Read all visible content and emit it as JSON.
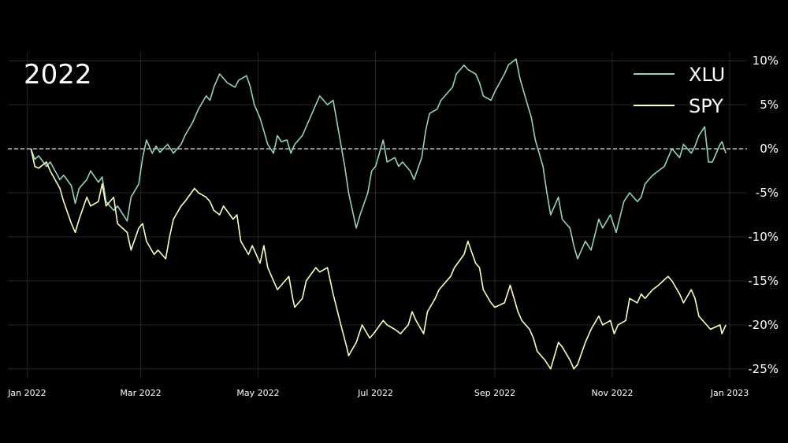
{
  "chart_data": {
    "type": "line",
    "title": "2022",
    "xlabel": "",
    "ylabel": "",
    "x_ticks": [
      "Jan 2022",
      "Mar 2022",
      "May 2022",
      "Jul 2022",
      "Sep 2022",
      "Nov 2022",
      "Jan 2023"
    ],
    "y_ticks": [
      "10%",
      "5%",
      "0%",
      "-5%",
      "-10%",
      "-15%",
      "-20%",
      "-25%"
    ],
    "ylim": [
      -26,
      11
    ],
    "xlim": [
      "2021-12-22",
      "2023-01-10"
    ],
    "grid": true,
    "reference_line": {
      "y": 0,
      "style": "dashed"
    },
    "legend_position": "top-right",
    "series": [
      {
        "name": "XLU",
        "color": "#8fd3c3",
        "points": [
          [
            "2022-01-03",
            0.0
          ],
          [
            "2022-01-05",
            -1.2
          ],
          [
            "2022-01-07",
            -0.8
          ],
          [
            "2022-01-11",
            -2.0
          ],
          [
            "2022-01-13",
            -1.5
          ],
          [
            "2022-01-18",
            -3.5
          ],
          [
            "2022-01-20",
            -3.0
          ],
          [
            "2022-01-24",
            -4.2
          ],
          [
            "2022-01-26",
            -6.2
          ],
          [
            "2022-01-28",
            -4.5
          ],
          [
            "2022-02-01",
            -3.5
          ],
          [
            "2022-02-03",
            -2.5
          ],
          [
            "2022-02-07",
            -3.8
          ],
          [
            "2022-02-09",
            -3.2
          ],
          [
            "2022-02-11",
            -6.0
          ],
          [
            "2022-02-15",
            -7.0
          ],
          [
            "2022-02-17",
            -6.5
          ],
          [
            "2022-02-22",
            -8.2
          ],
          [
            "2022-02-24",
            -5.5
          ],
          [
            "2022-02-28",
            -4.0
          ],
          [
            "2022-03-02",
            -1.0
          ],
          [
            "2022-03-04",
            1.0
          ],
          [
            "2022-03-07",
            -0.5
          ],
          [
            "2022-03-09",
            0.3
          ],
          [
            "2022-03-11",
            -0.4
          ],
          [
            "2022-03-15",
            0.5
          ],
          [
            "2022-03-18",
            -0.5
          ],
          [
            "2022-03-22",
            0.5
          ],
          [
            "2022-03-24",
            1.5
          ],
          [
            "2022-03-28",
            3.0
          ],
          [
            "2022-03-31",
            4.5
          ],
          [
            "2022-04-04",
            6.0
          ],
          [
            "2022-04-06",
            5.5
          ],
          [
            "2022-04-08",
            7.0
          ],
          [
            "2022-04-11",
            8.5
          ],
          [
            "2022-04-13",
            8.0
          ],
          [
            "2022-04-15",
            7.5
          ],
          [
            "2022-04-19",
            7.0
          ],
          [
            "2022-04-21",
            7.8
          ],
          [
            "2022-04-25",
            8.3
          ],
          [
            "2022-04-27",
            7.0
          ],
          [
            "2022-04-29",
            5.0
          ],
          [
            "2022-05-02",
            3.5
          ],
          [
            "2022-05-04",
            2.0
          ],
          [
            "2022-05-06",
            0.5
          ],
          [
            "2022-05-09",
            -0.5
          ],
          [
            "2022-05-11",
            1.5
          ],
          [
            "2022-05-13",
            0.8
          ],
          [
            "2022-05-16",
            1.0
          ],
          [
            "2022-05-18",
            -0.5
          ],
          [
            "2022-05-20",
            0.5
          ],
          [
            "2022-05-24",
            1.5
          ],
          [
            "2022-05-26",
            2.5
          ],
          [
            "2022-05-31",
            5.0
          ],
          [
            "2022-06-02",
            6.0
          ],
          [
            "2022-06-06",
            5.0
          ],
          [
            "2022-06-09",
            5.5
          ],
          [
            "2022-06-13",
            0.5
          ],
          [
            "2022-06-15",
            -2.0
          ],
          [
            "2022-06-17",
            -5.0
          ],
          [
            "2022-06-21",
            -9.0
          ],
          [
            "2022-06-23",
            -7.5
          ],
          [
            "2022-06-27",
            -5.0
          ],
          [
            "2022-06-29",
            -2.5
          ],
          [
            "2022-07-01",
            -2.0
          ],
          [
            "2022-07-05",
            1.0
          ],
          [
            "2022-07-07",
            -1.5
          ],
          [
            "2022-07-11",
            -1.0
          ],
          [
            "2022-07-13",
            -2.0
          ],
          [
            "2022-07-15",
            -1.5
          ],
          [
            "2022-07-19",
            -2.5
          ],
          [
            "2022-07-21",
            -3.5
          ],
          [
            "2022-07-25",
            -1.0
          ],
          [
            "2022-07-27",
            2.0
          ],
          [
            "2022-07-29",
            4.0
          ],
          [
            "2022-08-02",
            4.5
          ],
          [
            "2022-08-04",
            5.5
          ],
          [
            "2022-08-08",
            6.5
          ],
          [
            "2022-08-10",
            7.0
          ],
          [
            "2022-08-12",
            8.5
          ],
          [
            "2022-08-16",
            9.5
          ],
          [
            "2022-08-18",
            9.0
          ],
          [
            "2022-08-22",
            8.5
          ],
          [
            "2022-08-24",
            7.5
          ],
          [
            "2022-08-26",
            6.0
          ],
          [
            "2022-08-30",
            5.5
          ],
          [
            "2022-09-01",
            6.5
          ],
          [
            "2022-09-06",
            8.5
          ],
          [
            "2022-09-08",
            9.5
          ],
          [
            "2022-09-12",
            10.2
          ],
          [
            "2022-09-14",
            8.0
          ],
          [
            "2022-09-16",
            6.5
          ],
          [
            "2022-09-20",
            3.5
          ],
          [
            "2022-09-22",
            1.0
          ],
          [
            "2022-09-26",
            -2.0
          ],
          [
            "2022-09-28",
            -5.0
          ],
          [
            "2022-09-30",
            -7.5
          ],
          [
            "2022-10-04",
            -5.5
          ],
          [
            "2022-10-06",
            -8.0
          ],
          [
            "2022-10-10",
            -9.0
          ],
          [
            "2022-10-12",
            -11.0
          ],
          [
            "2022-10-14",
            -12.5
          ],
          [
            "2022-10-18",
            -10.5
          ],
          [
            "2022-10-21",
            -11.5
          ],
          [
            "2022-10-25",
            -8.0
          ],
          [
            "2022-10-27",
            -9.0
          ],
          [
            "2022-10-31",
            -7.5
          ],
          [
            "2022-11-03",
            -9.5
          ],
          [
            "2022-11-07",
            -6.0
          ],
          [
            "2022-11-10",
            -5.0
          ],
          [
            "2022-11-14",
            -6.0
          ],
          [
            "2022-11-16",
            -5.5
          ],
          [
            "2022-11-18",
            -4.0
          ],
          [
            "2022-11-22",
            -3.0
          ],
          [
            "2022-11-28",
            -2.0
          ],
          [
            "2022-11-30",
            -1.0
          ],
          [
            "2022-12-02",
            0.0
          ],
          [
            "2022-12-06",
            -1.0
          ],
          [
            "2022-12-08",
            0.5
          ],
          [
            "2022-12-12",
            -0.5
          ],
          [
            "2022-12-14",
            0.3
          ],
          [
            "2022-12-16",
            1.5
          ],
          [
            "2022-12-19",
            2.5
          ],
          [
            "2022-12-21",
            -1.5
          ],
          [
            "2022-12-23",
            -1.5
          ],
          [
            "2022-12-27",
            0.5
          ],
          [
            "2022-12-28",
            0.8
          ],
          [
            "2022-12-30",
            -0.5
          ]
        ]
      },
      {
        "name": "SPY",
        "color": "#ffffb3",
        "points": [
          [
            "2022-01-03",
            0.0
          ],
          [
            "2022-01-05",
            -2.0
          ],
          [
            "2022-01-07",
            -2.2
          ],
          [
            "2022-01-11",
            -1.5
          ],
          [
            "2022-01-13",
            -2.5
          ],
          [
            "2022-01-18",
            -4.5
          ],
          [
            "2022-01-20",
            -6.0
          ],
          [
            "2022-01-24",
            -8.5
          ],
          [
            "2022-01-26",
            -9.5
          ],
          [
            "2022-01-28",
            -8.0
          ],
          [
            "2022-02-01",
            -5.5
          ],
          [
            "2022-02-03",
            -6.5
          ],
          [
            "2022-02-07",
            -6.0
          ],
          [
            "2022-02-09",
            -4.0
          ],
          [
            "2022-02-11",
            -6.5
          ],
          [
            "2022-02-15",
            -5.5
          ],
          [
            "2022-02-17",
            -8.5
          ],
          [
            "2022-02-22",
            -9.5
          ],
          [
            "2022-02-24",
            -11.5
          ],
          [
            "2022-02-28",
            -9.0
          ],
          [
            "2022-03-02",
            -8.5
          ],
          [
            "2022-03-04",
            -10.5
          ],
          [
            "2022-03-08",
            -12.0
          ],
          [
            "2022-03-10",
            -11.5
          ],
          [
            "2022-03-14",
            -12.5
          ],
          [
            "2022-03-16",
            -10.0
          ],
          [
            "2022-03-18",
            -8.0
          ],
          [
            "2022-03-22",
            -6.5
          ],
          [
            "2022-03-24",
            -6.0
          ],
          [
            "2022-03-29",
            -4.5
          ],
          [
            "2022-03-31",
            -5.0
          ],
          [
            "2022-04-04",
            -5.5
          ],
          [
            "2022-04-06",
            -6.0
          ],
          [
            "2022-04-08",
            -7.0
          ],
          [
            "2022-04-11",
            -7.5
          ],
          [
            "2022-04-13",
            -6.5
          ],
          [
            "2022-04-18",
            -8.0
          ],
          [
            "2022-04-20",
            -7.5
          ],
          [
            "2022-04-22",
            -10.5
          ],
          [
            "2022-04-26",
            -12.0
          ],
          [
            "2022-04-28",
            -11.0
          ],
          [
            "2022-05-02",
            -13.0
          ],
          [
            "2022-05-04",
            -11.0
          ],
          [
            "2022-05-06",
            -13.5
          ],
          [
            "2022-05-09",
            -15.0
          ],
          [
            "2022-05-11",
            -16.0
          ],
          [
            "2022-05-13",
            -15.5
          ],
          [
            "2022-05-17",
            -14.5
          ],
          [
            "2022-05-19",
            -17.0
          ],
          [
            "2022-05-20",
            -18.0
          ],
          [
            "2022-05-24",
            -17.0
          ],
          [
            "2022-05-26",
            -15.0
          ],
          [
            "2022-05-31",
            -13.5
          ],
          [
            "2022-06-02",
            -14.0
          ],
          [
            "2022-06-06",
            -13.5
          ],
          [
            "2022-06-09",
            -16.5
          ],
          [
            "2022-06-13",
            -20.0
          ],
          [
            "2022-06-16",
            -22.5
          ],
          [
            "2022-06-17",
            -23.5
          ],
          [
            "2022-06-21",
            -22.0
          ],
          [
            "2022-06-24",
            -20.0
          ],
          [
            "2022-06-28",
            -21.5
          ],
          [
            "2022-06-30",
            -21.0
          ],
          [
            "2022-07-05",
            -19.5
          ],
          [
            "2022-07-07",
            -20.0
          ],
          [
            "2022-07-11",
            -20.5
          ],
          [
            "2022-07-14",
            -21.0
          ],
          [
            "2022-07-18",
            -20.0
          ],
          [
            "2022-07-20",
            -18.5
          ],
          [
            "2022-07-22",
            -19.5
          ],
          [
            "2022-07-26",
            -21.0
          ],
          [
            "2022-07-28",
            -18.5
          ],
          [
            "2022-08-01",
            -17.0
          ],
          [
            "2022-08-03",
            -16.0
          ],
          [
            "2022-08-05",
            -15.5
          ],
          [
            "2022-08-09",
            -14.5
          ],
          [
            "2022-08-11",
            -13.5
          ],
          [
            "2022-08-16",
            -12.0
          ],
          [
            "2022-08-18",
            -10.5
          ],
          [
            "2022-08-22",
            -13.0
          ],
          [
            "2022-08-24",
            -13.5
          ],
          [
            "2022-08-26",
            -16.0
          ],
          [
            "2022-08-30",
            -17.5
          ],
          [
            "2022-09-01",
            -18.0
          ],
          [
            "2022-09-06",
            -17.5
          ],
          [
            "2022-09-09",
            -15.5
          ],
          [
            "2022-09-13",
            -18.5
          ],
          [
            "2022-09-15",
            -19.5
          ],
          [
            "2022-09-19",
            -20.5
          ],
          [
            "2022-09-21",
            -21.5
          ],
          [
            "2022-09-23",
            -23.0
          ],
          [
            "2022-09-27",
            -24.0
          ],
          [
            "2022-09-30",
            -25.0
          ],
          [
            "2022-10-04",
            -22.0
          ],
          [
            "2022-10-06",
            -22.5
          ],
          [
            "2022-10-10",
            -24.0
          ],
          [
            "2022-10-12",
            -25.0
          ],
          [
            "2022-10-14",
            -24.5
          ],
          [
            "2022-10-18",
            -22.0
          ],
          [
            "2022-10-21",
            -20.5
          ],
          [
            "2022-10-25",
            -19.0
          ],
          [
            "2022-10-27",
            -20.0
          ],
          [
            "2022-10-31",
            -19.5
          ],
          [
            "2022-11-02",
            -21.0
          ],
          [
            "2022-11-04",
            -20.0
          ],
          [
            "2022-11-08",
            -19.5
          ],
          [
            "2022-11-10",
            -17.0
          ],
          [
            "2022-11-14",
            -17.5
          ],
          [
            "2022-11-16",
            -16.5
          ],
          [
            "2022-11-18",
            -17.0
          ],
          [
            "2022-11-22",
            -16.0
          ],
          [
            "2022-11-25",
            -15.5
          ],
          [
            "2022-11-30",
            -14.5
          ],
          [
            "2022-12-02",
            -15.0
          ],
          [
            "2022-12-06",
            -16.5
          ],
          [
            "2022-12-08",
            -17.5
          ],
          [
            "2022-12-12",
            -16.0
          ],
          [
            "2022-12-14",
            -17.0
          ],
          [
            "2022-12-16",
            -19.0
          ],
          [
            "2022-12-20",
            -20.0
          ],
          [
            "2022-12-22",
            -20.5
          ],
          [
            "2022-12-27",
            -20.0
          ],
          [
            "2022-12-28",
            -21.0
          ],
          [
            "2022-12-30",
            -20.0
          ]
        ]
      }
    ]
  }
}
